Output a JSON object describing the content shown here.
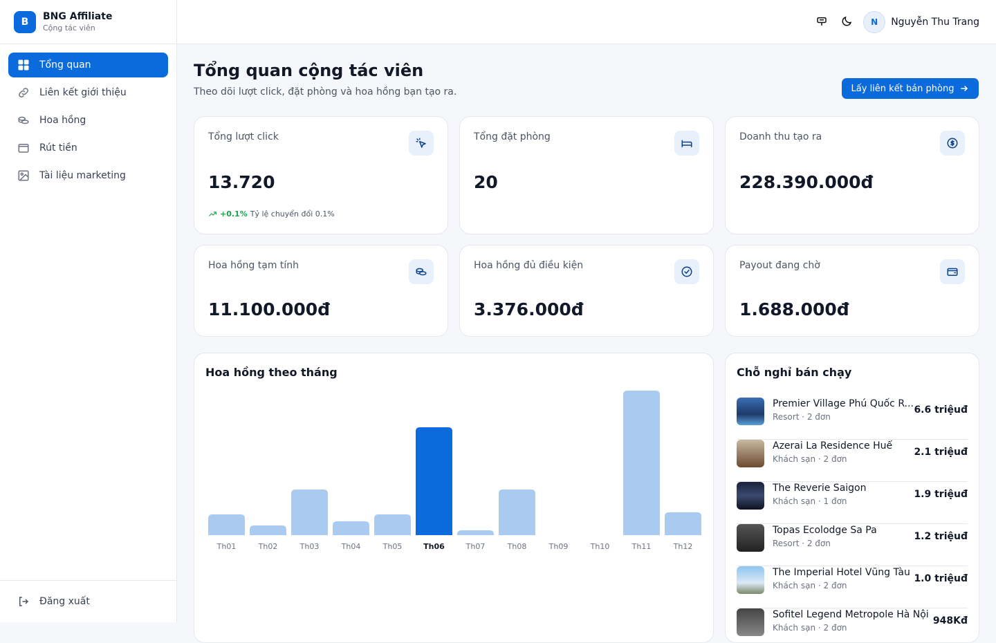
{
  "brand": {
    "initial": "B",
    "name": "BNG Affiliate",
    "subtitle": "Cộng tác viên"
  },
  "nav": [
    {
      "label": "Tổng quan",
      "active": true
    },
    {
      "label": "Liên kết giới thiệu",
      "active": false
    },
    {
      "label": "Hoa hồng",
      "active": false
    },
    {
      "label": "Rút tiền",
      "active": false
    },
    {
      "label": "Tài liệu marketing",
      "active": false
    }
  ],
  "logout": "Đăng xuất",
  "user": {
    "initial": "N",
    "name": "Nguyễn Thu Trang"
  },
  "page": {
    "title": "Tổng quan cộng tác viên",
    "subtitle": "Theo dõi lượt click, đặt phòng và hoa hồng bạn tạo ra.",
    "cta": "Lấy liên kết bán phòng"
  },
  "stats": [
    {
      "label": "Tổng lượt click",
      "value": "13.720",
      "trend": "+0.1%",
      "note": "Tỷ lệ chuyển đổi 0.1%"
    },
    {
      "label": "Tổng đặt phòng",
      "value": "20"
    },
    {
      "label": "Doanh thu tạo ra",
      "value": "228.390.000đ"
    },
    {
      "label": "Hoa hồng tạm tính",
      "value": "11.100.000đ"
    },
    {
      "label": "Hoa hồng đủ điều kiện",
      "value": "3.376.000đ"
    },
    {
      "label": "Payout đang chờ",
      "value": "1.688.000đ"
    }
  ],
  "chart_data": {
    "type": "bar",
    "title": "Hoa hồng theo tháng",
    "categories": [
      "Th01",
      "Th02",
      "Th03",
      "Th04",
      "Th05",
      "Th06",
      "Th07",
      "Th08",
      "Th09",
      "Th10",
      "Th11",
      "Th12"
    ],
    "values": [
      30,
      14,
      66,
      20,
      30,
      156,
      7,
      66,
      0,
      0,
      209,
      33
    ],
    "colors": [
      "#a9cbf2",
      "#a9cbf2",
      "#a9cbf2",
      "#a9cbf2",
      "#a9cbf2",
      "#0b6bdc",
      "#a9cbf2",
      "#a9cbf2",
      "#a9cbf2",
      "#a9cbf2",
      "#a9cbf2",
      "#a9cbf2"
    ],
    "active_color": "#0b6bdc",
    "ylim": [
      0,
      209
    ]
  },
  "top_properties": {
    "title": "Chỗ nghỉ bán chạy",
    "items": [
      {
        "name": "Premier Village Phú Quốc R...",
        "meta": "Resort · 2 đơn",
        "amount": "6.6 triệuđ"
      },
      {
        "name": "Azerai La Residence Huế",
        "meta": "Khách sạn · 2 đơn",
        "amount": "2.1 triệuđ"
      },
      {
        "name": "The Reverie Saigon",
        "meta": "Khách sạn · 1 đơn",
        "amount": "1.9 triệuđ"
      },
      {
        "name": "Topas Ecolodge Sa Pa",
        "meta": "Resort · 2 đơn",
        "amount": "1.2 triệuđ"
      },
      {
        "name": "The Imperial Hotel Vũng Tàu",
        "meta": "Khách sạn · 2 đơn",
        "amount": "1.0 triệuđ"
      },
      {
        "name": "Sofitel Legend Metropole Hà Nội",
        "meta": "Khách sạn · 2 đơn",
        "amount": "948Kđ"
      }
    ]
  }
}
